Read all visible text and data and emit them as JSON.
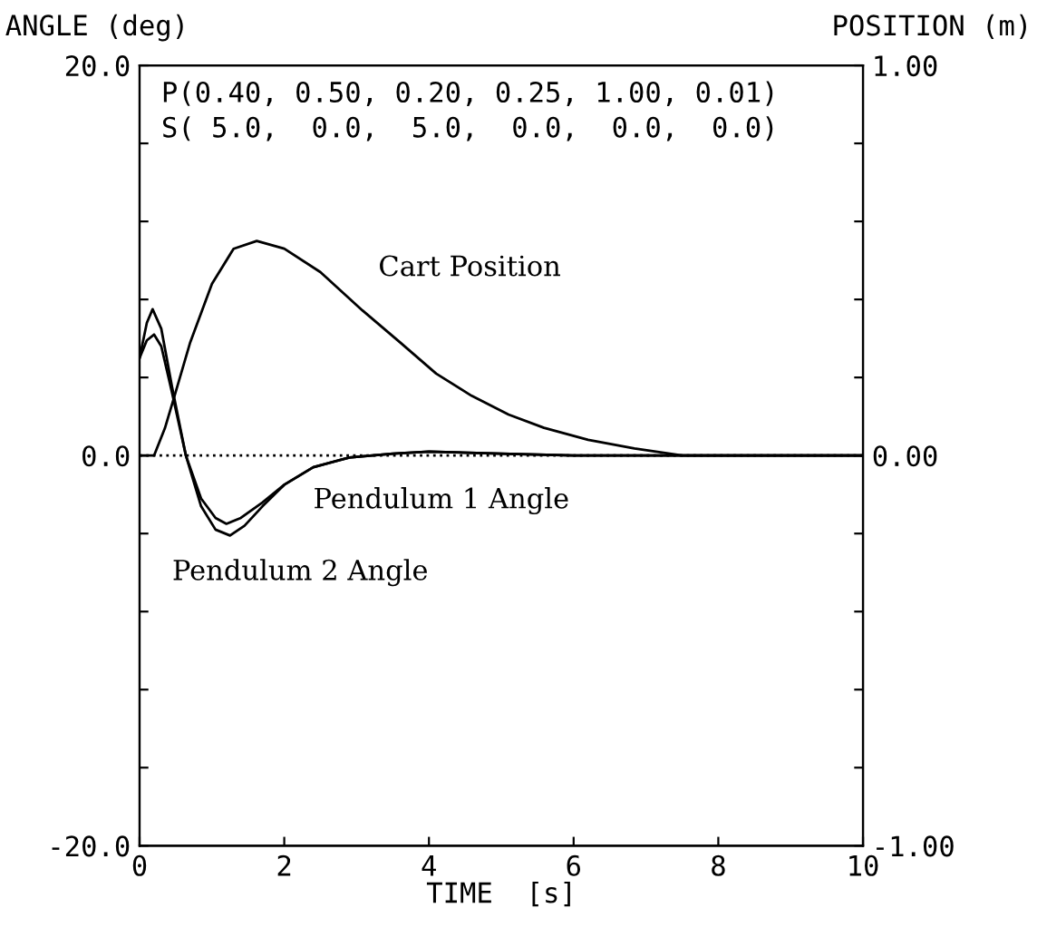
{
  "chart_data": {
    "type": "line",
    "xlabel": "TIME  [s]",
    "ylabel": "ANGLE (deg)",
    "y2label": "POSITION (m)",
    "annotations": [
      "P(0.40, 0.50, 0.20, 0.25, 1.00, 0.01)",
      "S( 5.0,  0.0,  5.0,  0.0,  0.0,  0.0)"
    ],
    "xlim": [
      0,
      10
    ],
    "xticks": [
      0,
      2,
      4,
      6,
      8,
      10
    ],
    "ylim": [
      -20,
      20
    ],
    "yticks": [
      {
        "value": -20,
        "label": "-20.0"
      },
      {
        "value": -16,
        "label": null
      },
      {
        "value": -12,
        "label": null
      },
      {
        "value": -8,
        "label": null
      },
      {
        "value": -4,
        "label": null
      },
      {
        "value": 0,
        "label": "0.0"
      },
      {
        "value": 4,
        "label": null
      },
      {
        "value": 8,
        "label": null
      },
      {
        "value": 12,
        "label": null
      },
      {
        "value": 16,
        "label": null
      },
      {
        "value": 20,
        "label": "20.0"
      }
    ],
    "y2lim": [
      -1,
      1
    ],
    "y2ticks": [
      {
        "value": -1,
        "label": "-1.00"
      },
      {
        "value": -0.8,
        "label": null
      },
      {
        "value": -0.6,
        "label": null
      },
      {
        "value": -0.4,
        "label": null
      },
      {
        "value": -0.2,
        "label": null
      },
      {
        "value": 0,
        "label": "0.00"
      },
      {
        "value": 0.2,
        "label": null
      },
      {
        "value": 0.4,
        "label": null
      },
      {
        "value": 0.6,
        "label": null
      },
      {
        "value": 0.8,
        "label": null
      },
      {
        "value": 1,
        "label": "1.00"
      }
    ],
    "ref_lines": [
      {
        "axis": "y",
        "value": 0,
        "line_style": "dotted",
        "color": "#000000"
      }
    ],
    "grid": false,
    "legend": false,
    "marker": "none",
    "line_style": "solid",
    "series": [
      {
        "name": "Pendulum 2 Angle",
        "color": "#000000",
        "x": [
          0,
          0.1,
          0.18,
          0.3,
          0.45,
          0.64,
          0.85,
          1.05,
          1.25,
          1.45,
          1.7,
          2.0,
          2.4,
          2.9,
          3.5,
          4.0,
          5.0,
          6.0,
          7.0,
          8.0,
          10.0
        ],
        "values": [
          5.0,
          6.8,
          7.5,
          6.5,
          3.5,
          0.0,
          -2.6,
          -3.8,
          -4.1,
          -3.6,
          -2.6,
          -1.5,
          -0.6,
          -0.1,
          0.1,
          0.2,
          0.1,
          0.0,
          0.0,
          0.0,
          0.0
        ]
      },
      {
        "name": "Pendulum 1 Angle",
        "color": "#000000",
        "x": [
          0,
          0.1,
          0.2,
          0.3,
          0.45,
          0.64,
          0.85,
          1.05,
          1.2,
          1.4,
          1.7,
          2.0,
          2.4,
          2.9,
          3.5,
          4.0,
          5.0,
          6.0,
          7.0,
          8.0,
          10.0
        ],
        "values": [
          5.0,
          5.9,
          6.2,
          5.6,
          3.2,
          0.0,
          -2.2,
          -3.2,
          -3.5,
          -3.2,
          -2.4,
          -1.5,
          -0.6,
          -0.1,
          0.1,
          0.2,
          0.1,
          0.0,
          0.0,
          0.0,
          0.0
        ]
      },
      {
        "name": "Cart Position",
        "color": "#000000",
        "axis": "y2",
        "x": [
          0,
          0.2,
          0.35,
          0.49,
          0.7,
          1.0,
          1.3,
          1.62,
          2.0,
          2.5,
          3.08,
          3.6,
          4.1,
          4.59,
          5.1,
          5.59,
          6.2,
          6.84,
          7.5,
          8.0,
          10.0
        ],
        "values": [
          0.0,
          0.0,
          0.07,
          0.157,
          0.29,
          0.44,
          0.53,
          0.55,
          0.53,
          0.47,
          0.372,
          0.29,
          0.21,
          0.153,
          0.105,
          0.071,
          0.04,
          0.018,
          0.0,
          0.0,
          0.0
        ]
      }
    ]
  }
}
